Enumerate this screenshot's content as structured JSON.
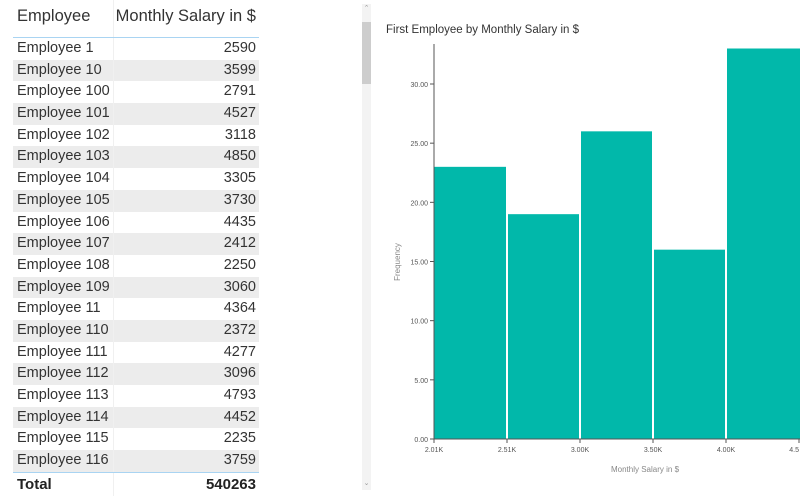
{
  "table": {
    "headers": [
      "Employee",
      "Monthly Salary in $"
    ],
    "rows": [
      [
        "Employee 1",
        "2590"
      ],
      [
        "Employee 10",
        "3599"
      ],
      [
        "Employee 100",
        "2791"
      ],
      [
        "Employee 101",
        "4527"
      ],
      [
        "Employee 102",
        "3118"
      ],
      [
        "Employee 103",
        "4850"
      ],
      [
        "Employee 104",
        "3305"
      ],
      [
        "Employee 105",
        "3730"
      ],
      [
        "Employee 106",
        "4435"
      ],
      [
        "Employee 107",
        "2412"
      ],
      [
        "Employee 108",
        "2250"
      ],
      [
        "Employee 109",
        "3060"
      ],
      [
        "Employee 11",
        "4364"
      ],
      [
        "Employee 110",
        "2372"
      ],
      [
        "Employee 111",
        "4277"
      ],
      [
        "Employee 112",
        "3096"
      ],
      [
        "Employee 113",
        "4793"
      ],
      [
        "Employee 114",
        "4452"
      ],
      [
        "Employee 115",
        "2235"
      ],
      [
        "Employee 116",
        "3759"
      ]
    ],
    "total_label": "Total",
    "total_value": "540263"
  },
  "scrollbar": {
    "up_icon": "chevron-up",
    "down_icon": "chevron-down"
  },
  "chart_data": {
    "type": "bar",
    "title": "First Employee by Monthly Salary in $",
    "xlabel": "Monthly Salary in $",
    "ylabel": "Frequency",
    "categories": [
      "2.01K",
      "2.51K",
      "3.00K",
      "3.50K",
      "4.00K"
    ],
    "x_ticks": [
      "2.01K",
      "2.51K",
      "3.00K",
      "3.50K",
      "4.00K",
      "4.5"
    ],
    "values": [
      23,
      19,
      26,
      16,
      33
    ],
    "y_ticks": [
      "0.00",
      "5.00",
      "10.00",
      "15.00",
      "20.00",
      "25.00",
      "30.00"
    ],
    "ylim": [
      0,
      33
    ],
    "grid": false,
    "color": "#01b8aa"
  }
}
